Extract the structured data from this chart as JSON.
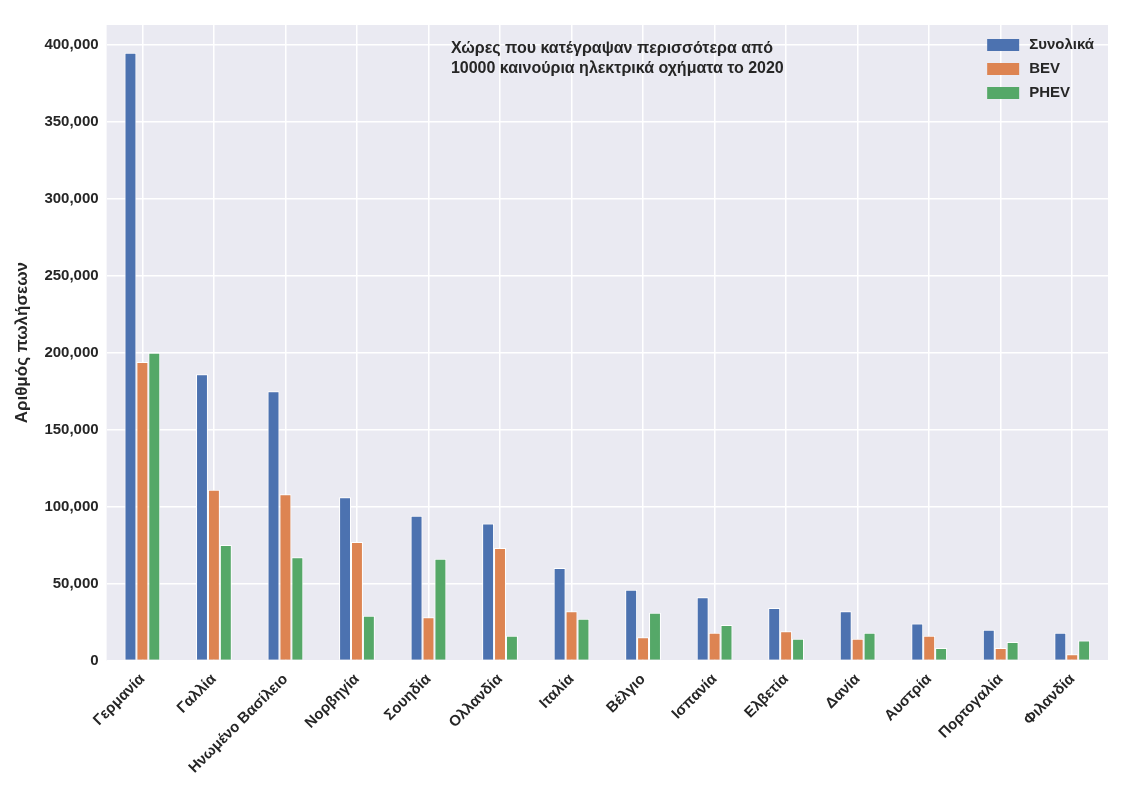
{
  "chart_data": {
    "type": "bar",
    "title": "Χώρες που κατέγραψαν περισσότερα από\n10000 καινούρια ηλεκτρικά οχήματα το 2020",
    "ylabel": "Αριθμός πωλήσεων",
    "categories": [
      "Γερμανία",
      "Γαλλία",
      "Ηνωμένο Βασίλειο",
      "Νορβηγία",
      "Σουηδία",
      "Ολλανδία",
      "Ιταλία",
      "Βέλγιο",
      "Ισπανία",
      "Ελβετία",
      "Δανία",
      "Αυστρία",
      "Πορτογαλία",
      "Φιλανδία"
    ],
    "series": [
      {
        "name": "Συνολικά",
        "color": "#4c72b0",
        "values": [
          395000,
          186000,
          175000,
          106000,
          94000,
          89000,
          60000,
          46000,
          41000,
          34000,
          32000,
          24000,
          20000,
          18000
        ]
      },
      {
        "name": "BEV",
        "color": "#dd8452",
        "values": [
          194000,
          111000,
          108000,
          77000,
          28000,
          73000,
          32000,
          15000,
          18000,
          19000,
          14000,
          16000,
          8000,
          4000
        ]
      },
      {
        "name": "PHEV",
        "color": "#55a868",
        "values": [
          200000,
          75000,
          67000,
          29000,
          66000,
          16000,
          27000,
          31000,
          23000,
          14000,
          18000,
          8000,
          12000,
          13000
        ]
      }
    ],
    "ylim": [
      0,
      413000
    ],
    "yticks": [
      0,
      {
        "value": 50000,
        "label": "50,000"
      },
      {
        "value": 100000,
        "label": "100,000"
      },
      {
        "value": 150000,
        "label": "150,000"
      },
      {
        "value": 200000,
        "label": "200,000"
      },
      {
        "value": 250000,
        "label": "250,000"
      },
      {
        "value": 300000,
        "label": "300,000"
      },
      {
        "value": 350000,
        "label": "350,000"
      },
      {
        "value": 400000,
        "label": "400,000"
      }
    ],
    "grid": true,
    "legend": "top right"
  }
}
